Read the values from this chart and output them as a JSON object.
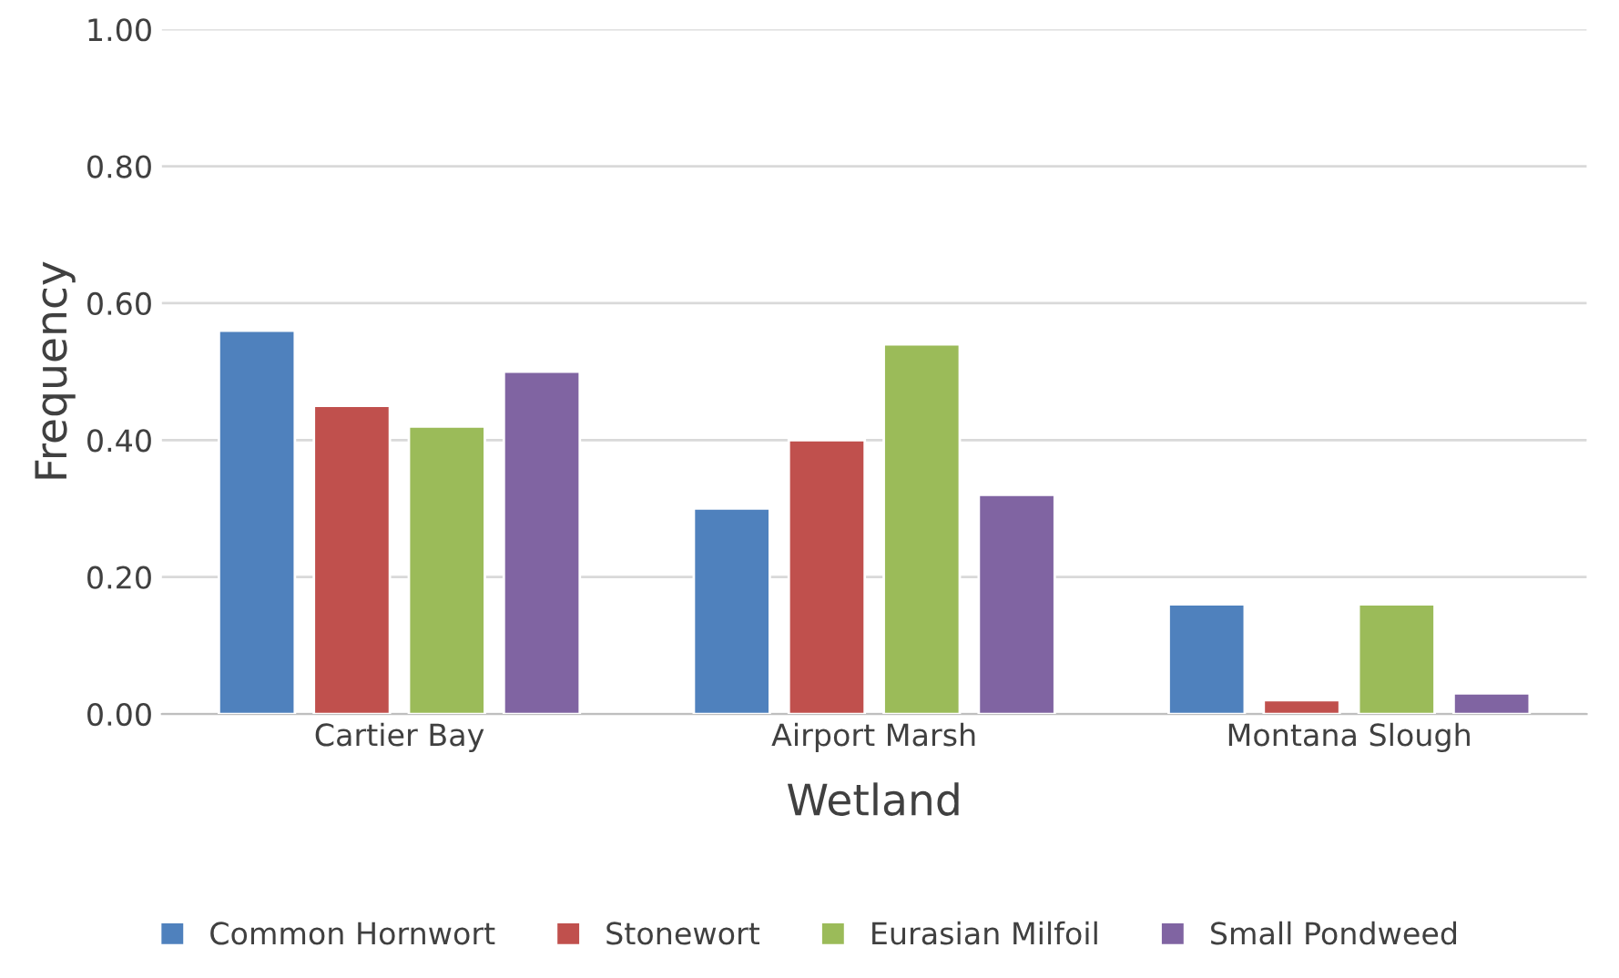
{
  "chart_data": {
    "type": "bar",
    "xlabel": "Wetland",
    "ylabel": "Frequency",
    "categories": [
      "Cartier Bay",
      "Airport Marsh",
      "Montana Slough"
    ],
    "series": [
      {
        "name": "Common Hornwort",
        "color": "#4f81bd",
        "values": [
          0.56,
          0.3,
          0.16
        ]
      },
      {
        "name": "Stonewort",
        "color": "#c0504d",
        "values": [
          0.45,
          0.4,
          0.02
        ]
      },
      {
        "name": "Eurasian Milfoil",
        "color": "#9bbb59",
        "values": [
          0.42,
          0.54,
          0.16
        ]
      },
      {
        "name": "Small Pondweed",
        "color": "#8064a2",
        "values": [
          0.5,
          0.32,
          0.03
        ]
      }
    ],
    "ylim": [
      0,
      1.0
    ],
    "yticks": [
      {
        "value": 0,
        "label": "0.00"
      },
      {
        "value": 0.2,
        "label": "0.20"
      },
      {
        "value": 0.4,
        "label": "0.40"
      },
      {
        "value": 0.6,
        "label": "0.60"
      },
      {
        "value": 0.8,
        "label": "0.80"
      },
      {
        "value": 1.0,
        "label": "1.00"
      }
    ],
    "grid": "y",
    "legend": "bottom"
  }
}
